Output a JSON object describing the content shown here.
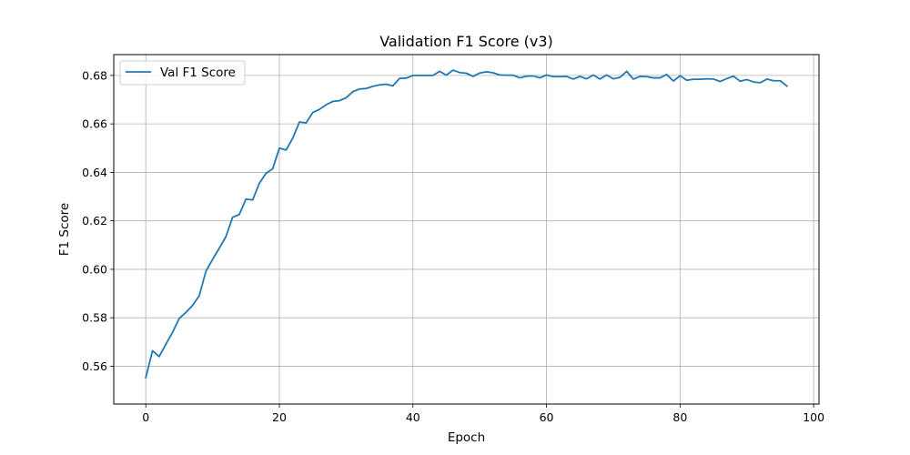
{
  "chart_data": {
    "type": "line",
    "title": "Validation F1 Score (v3)",
    "xlabel": "Epoch",
    "ylabel": "F1 Score",
    "xlim": [
      -4.8,
      100.8
    ],
    "ylim": [
      0.5444,
      0.6886
    ],
    "xticks": [
      0,
      20,
      40,
      60,
      80,
      100
    ],
    "yticks": [
      0.56,
      0.58,
      0.6,
      0.62,
      0.64,
      0.66,
      0.68
    ],
    "grid": true,
    "legend_position": "top-left",
    "series": [
      {
        "name": "Val F1 Score",
        "color": "#1f77b4",
        "x": [
          0,
          1,
          2,
          3,
          4,
          5,
          6,
          7,
          8,
          9,
          10,
          11,
          12,
          13,
          14,
          15,
          16,
          17,
          18,
          19,
          20,
          21,
          22,
          23,
          24,
          25,
          26,
          27,
          28,
          29,
          30,
          31,
          32,
          33,
          34,
          35,
          36,
          37,
          38,
          39,
          40,
          41,
          42,
          43,
          44,
          45,
          46,
          47,
          48,
          49,
          50,
          51,
          52,
          53,
          54,
          55,
          56,
          57,
          58,
          59,
          60,
          61,
          62,
          63,
          64,
          65,
          66,
          67,
          68,
          69,
          70,
          71,
          72,
          73,
          74,
          75,
          76,
          77,
          78,
          79,
          80,
          81,
          82,
          83,
          84,
          85,
          86,
          87,
          88,
          89,
          90,
          91,
          92,
          93,
          94,
          95,
          96
        ],
        "y": [
          0.5553,
          0.5664,
          0.564,
          0.569,
          0.574,
          0.5797,
          0.5822,
          0.5851,
          0.5891,
          0.5992,
          0.6041,
          0.6087,
          0.6135,
          0.6215,
          0.6226,
          0.629,
          0.6286,
          0.6355,
          0.6396,
          0.6415,
          0.65,
          0.6492,
          0.6541,
          0.6608,
          0.6604,
          0.6647,
          0.666,
          0.6679,
          0.6693,
          0.6696,
          0.6708,
          0.6733,
          0.6744,
          0.6746,
          0.6755,
          0.6761,
          0.6764,
          0.6757,
          0.6788,
          0.6789,
          0.68,
          0.68,
          0.68,
          0.68,
          0.6817,
          0.6801,
          0.6822,
          0.6812,
          0.6809,
          0.6796,
          0.681,
          0.6815,
          0.6811,
          0.6802,
          0.6801,
          0.6801,
          0.679,
          0.6797,
          0.6798,
          0.679,
          0.6802,
          0.6795,
          0.6795,
          0.6796,
          0.6785,
          0.6796,
          0.6786,
          0.6802,
          0.6785,
          0.6802,
          0.6786,
          0.6792,
          0.6817,
          0.6785,
          0.6796,
          0.6795,
          0.679,
          0.679,
          0.6804,
          0.6777,
          0.6799,
          0.678,
          0.6784,
          0.6784,
          0.6786,
          0.6785,
          0.6775,
          0.6787,
          0.6797,
          0.6776,
          0.6783,
          0.6773,
          0.677,
          0.6785,
          0.6778,
          0.6778,
          0.6756
        ]
      }
    ]
  }
}
